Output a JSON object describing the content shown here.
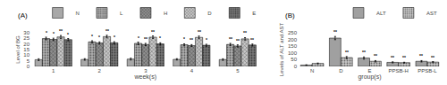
{
  "chart_data": [
    {
      "type": "bar",
      "title": "(A)",
      "x_label": "week(s)",
      "y_label": "Level of BG",
      "categories": [
        "1",
        "2",
        "3",
        "4",
        "5"
      ],
      "series": [
        {
          "name": "N",
          "color": "#a8a8a8",
          "values": [
            6.0,
            6.2,
            6.5,
            6.3,
            6.1
          ],
          "errors": [
            0.8,
            0.7,
            0.8,
            0.6,
            0.7
          ]
        },
        {
          "name": "L",
          "color": "#b0b0b0",
          "marker": "dots",
          "values": [
            24.8,
            21.8,
            20.5,
            19.2,
            19.5
          ],
          "errors": [
            1.2,
            1.0,
            1.1,
            0.9,
            1.0
          ],
          "sig_labels": [
            "*",
            "*",
            "*",
            "*",
            "**"
          ]
        },
        {
          "name": "H",
          "color": "#909090",
          "marker": "crosses",
          "values": [
            24.0,
            20.8,
            19.5,
            18.5,
            18.2
          ],
          "errors": [
            1.1,
            1.0,
            1.0,
            0.9,
            1.0
          ],
          "sig_labels": [
            "*",
            "*",
            "**",
            "**",
            "**"
          ]
        },
        {
          "name": "D",
          "color": "#c8c8c8",
          "marker": "crosses",
          "values": [
            26.2,
            26.5,
            26.0,
            25.8,
            24.5
          ],
          "errors": [
            1.3,
            1.2,
            1.1,
            1.2,
            1.1
          ],
          "sig_labels": [
            "**",
            "**",
            "**",
            "**",
            "**"
          ]
        },
        {
          "name": "E",
          "color": "#787878",
          "marker": "dots",
          "values": [
            23.8,
            21.0,
            20.0,
            18.8,
            19.0
          ],
          "errors": [
            1.0,
            1.0,
            1.0,
            0.9,
            0.9
          ],
          "sig_labels": [
            "*",
            "*",
            "*",
            "*",
            "**"
          ]
        }
      ],
      "ylim": [
        0,
        30
      ],
      "yticks": [
        0,
        5,
        10,
        15,
        20,
        25,
        30
      ],
      "grid": false,
      "legend": "upper right"
    },
    {
      "type": "bar",
      "title": "(B)",
      "x_label": "group(s)",
      "y_label": "Levels of ALT and AST",
      "categories": [
        "N",
        "D",
        "E",
        "PPSB-H",
        "PPSB-L"
      ],
      "series": [
        {
          "name": "ALT",
          "color": "#a0a0a0",
          "values": [
            10,
            210,
            62,
            30,
            38
          ],
          "errors": [
            2,
            12,
            8,
            4,
            5
          ],
          "sig_labels": [
            null,
            "**",
            "**",
            "**",
            "**"
          ]
        },
        {
          "name": "AST",
          "color": "#c8c8c8",
          "marker": "dots",
          "values": [
            22,
            65,
            38,
            28,
            32
          ],
          "errors": [
            3,
            8,
            5,
            3,
            4
          ],
          "sig_labels": [
            null,
            "**",
            "**",
            "**",
            "**"
          ]
        }
      ],
      "ylim": [
        0,
        250
      ],
      "yticks": [
        0,
        50,
        100,
        150,
        200,
        250
      ],
      "grid": false,
      "legend": "upper right"
    }
  ]
}
